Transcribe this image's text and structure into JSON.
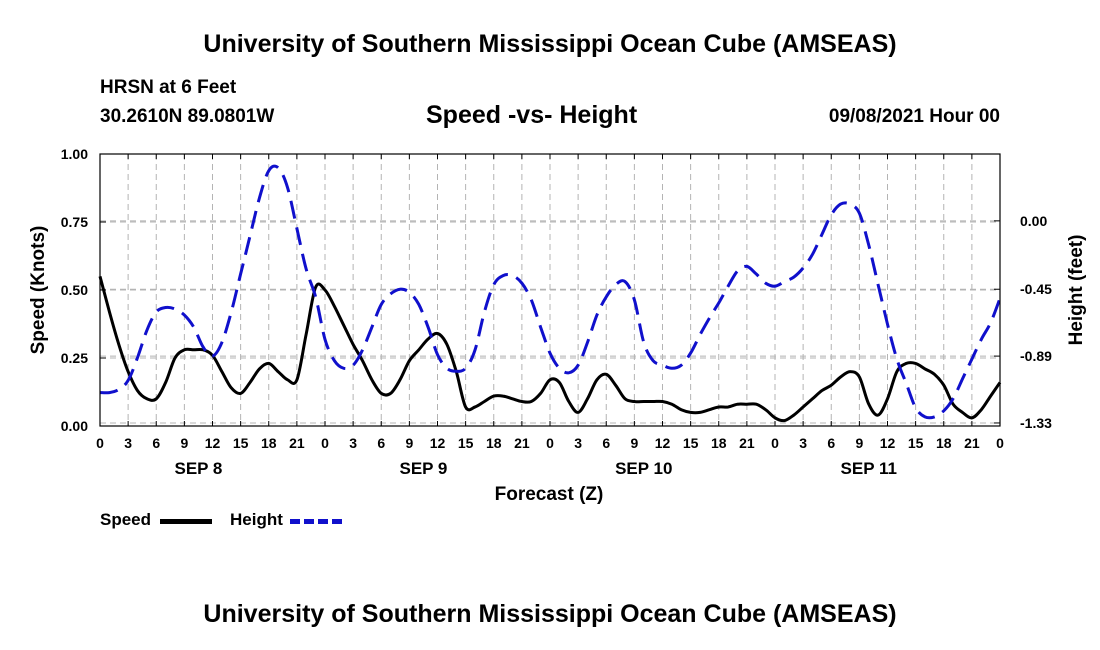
{
  "header": {
    "title": "University of Southern Mississippi Ocean Cube (AMSEAS)",
    "station": "HRSN at 6 Feet",
    "coords": "30.2610N  89.0801W",
    "chart_title": "Speed -vs- Height",
    "datetime": "09/08/2021 Hour 00"
  },
  "footer": {
    "title": "University of Southern Mississippi Ocean Cube (AMSEAS)"
  },
  "legend": {
    "speed_label": "Speed",
    "height_label": "Height"
  },
  "colors": {
    "speed": "#000000",
    "height": "#1010cc",
    "grid": "#b4b4b4"
  },
  "chart_data": {
    "type": "line",
    "title": "Speed -vs- Height",
    "xlabel": "Forecast (Z)",
    "ylabel": "Speed (Knots)",
    "y2label": "Height (feet)",
    "xlim": [
      0,
      96
    ],
    "ylim": [
      0,
      1.0
    ],
    "y2lim": [
      -1.35,
      0.44
    ],
    "grid": true,
    "legend_position": "bottom-left",
    "x_tick_labels": [
      "0",
      "3",
      "6",
      "9",
      "12",
      "15",
      "18",
      "21",
      "0",
      "3",
      "6",
      "9",
      "12",
      "15",
      "18",
      "21",
      "0",
      "3",
      "6",
      "9",
      "12",
      "15",
      "18",
      "21",
      "0",
      "3",
      "6",
      "9",
      "12",
      "15",
      "18",
      "21",
      "0"
    ],
    "date_labels": [
      {
        "text": "SEP 8",
        "hour": 10.5
      },
      {
        "text": "SEP 9",
        "hour": 34.5
      },
      {
        "text": "SEP 10",
        "hour": 58
      },
      {
        "text": "SEP 11",
        "hour": 82
      }
    ],
    "y_ticks": [
      "0.00",
      "0.25",
      "0.50",
      "0.75",
      "1.00"
    ],
    "y_tick_values": [
      0,
      0.25,
      0.5,
      0.75,
      1.0
    ],
    "y2_ticks": [
      "-1.33",
      "-0.89",
      "-0.45",
      "0.00"
    ],
    "y2_tick_values": [
      -1.33,
      -0.89,
      -0.45,
      0.0
    ],
    "series": [
      {
        "name": "Speed",
        "axis": "left",
        "style": "solid",
        "x": [
          0,
          1,
          2,
          3,
          4,
          5,
          6,
          7,
          8,
          9,
          10,
          11,
          12,
          13,
          14,
          15,
          16,
          17,
          18,
          19,
          20,
          21,
          22,
          23,
          24,
          25,
          26,
          27,
          28,
          29,
          30,
          31,
          32,
          33,
          34,
          35,
          36,
          37,
          38,
          39,
          40,
          41,
          42,
          43,
          44,
          45,
          46,
          47,
          48,
          49,
          50,
          51,
          52,
          53,
          54,
          55,
          56,
          57,
          58,
          59,
          60,
          61,
          62,
          63,
          64,
          65,
          66,
          67,
          68,
          69,
          70,
          71,
          72,
          73,
          74,
          75,
          76,
          77,
          78,
          79,
          80,
          81,
          82,
          83,
          84,
          85,
          86,
          87,
          88,
          89,
          90,
          91,
          92,
          93,
          94,
          95,
          96
        ],
        "values": [
          0.55,
          0.42,
          0.3,
          0.2,
          0.13,
          0.1,
          0.1,
          0.16,
          0.25,
          0.28,
          0.28,
          0.28,
          0.26,
          0.2,
          0.14,
          0.12,
          0.16,
          0.21,
          0.23,
          0.2,
          0.17,
          0.17,
          0.34,
          0.51,
          0.5,
          0.44,
          0.37,
          0.3,
          0.24,
          0.17,
          0.12,
          0.12,
          0.17,
          0.24,
          0.28,
          0.32,
          0.34,
          0.3,
          0.2,
          0.07,
          0.07,
          0.09,
          0.11,
          0.11,
          0.1,
          0.09,
          0.09,
          0.12,
          0.17,
          0.16,
          0.09,
          0.05,
          0.1,
          0.17,
          0.19,
          0.15,
          0.1,
          0.09,
          0.09,
          0.09,
          0.09,
          0.08,
          0.06,
          0.05,
          0.05,
          0.06,
          0.07,
          0.07,
          0.08,
          0.08,
          0.08,
          0.06,
          0.03,
          0.02,
          0.04,
          0.07,
          0.1,
          0.13,
          0.15,
          0.18,
          0.2,
          0.18,
          0.08,
          0.04,
          0.1,
          0.2,
          0.23,
          0.23,
          0.21,
          0.19,
          0.15,
          0.08,
          0.05,
          0.03,
          0.06,
          0.11,
          0.16
        ]
      },
      {
        "name": "Height",
        "axis": "right",
        "style": "dashed",
        "x": [
          0,
          1,
          2,
          3,
          4,
          5,
          6,
          7,
          8,
          9,
          10,
          11,
          12,
          13,
          14,
          15,
          16,
          17,
          18,
          19,
          20,
          21,
          22,
          23,
          24,
          25,
          26,
          27,
          28,
          29,
          30,
          31,
          32,
          33,
          34,
          35,
          36,
          37,
          38,
          39,
          40,
          41,
          42,
          43,
          44,
          45,
          46,
          47,
          48,
          49,
          50,
          51,
          52,
          53,
          54,
          55,
          56,
          57,
          58,
          59,
          60,
          61,
          62,
          63,
          64,
          65,
          66,
          67,
          68,
          69,
          70,
          71,
          72,
          73,
          74,
          75,
          76,
          77,
          78,
          79,
          80,
          81,
          82,
          83,
          84,
          85,
          86,
          87,
          88,
          89,
          90,
          91,
          92,
          93,
          94,
          95,
          96
        ],
        "values": [
          -1.13,
          -1.13,
          -1.11,
          -1.05,
          -0.9,
          -0.72,
          -0.6,
          -0.57,
          -0.58,
          -0.62,
          -0.7,
          -0.83,
          -0.89,
          -0.8,
          -0.6,
          -0.35,
          -0.1,
          0.15,
          0.33,
          0.35,
          0.22,
          -0.05,
          -0.32,
          -0.5,
          -0.78,
          -0.92,
          -0.97,
          -0.95,
          -0.85,
          -0.7,
          -0.55,
          -0.48,
          -0.45,
          -0.47,
          -0.55,
          -0.7,
          -0.88,
          -0.97,
          -0.99,
          -0.97,
          -0.85,
          -0.6,
          -0.42,
          -0.36,
          -0.36,
          -0.41,
          -0.52,
          -0.7,
          -0.87,
          -0.97,
          -1.0,
          -0.95,
          -0.8,
          -0.62,
          -0.5,
          -0.42,
          -0.4,
          -0.52,
          -0.8,
          -0.92,
          -0.95,
          -0.97,
          -0.95,
          -0.87,
          -0.75,
          -0.64,
          -0.54,
          -0.43,
          -0.33,
          -0.3,
          -0.35,
          -0.41,
          -0.43,
          -0.4,
          -0.37,
          -0.31,
          -0.22,
          -0.09,
          0.04,
          0.11,
          0.11,
          0.05,
          -0.16,
          -0.42,
          -0.68,
          -0.91,
          -1.07,
          -1.23,
          -1.29,
          -1.29,
          -1.25,
          -1.17,
          -1.04,
          -0.91,
          -0.78,
          -0.67,
          -0.51
        ]
      }
    ]
  }
}
